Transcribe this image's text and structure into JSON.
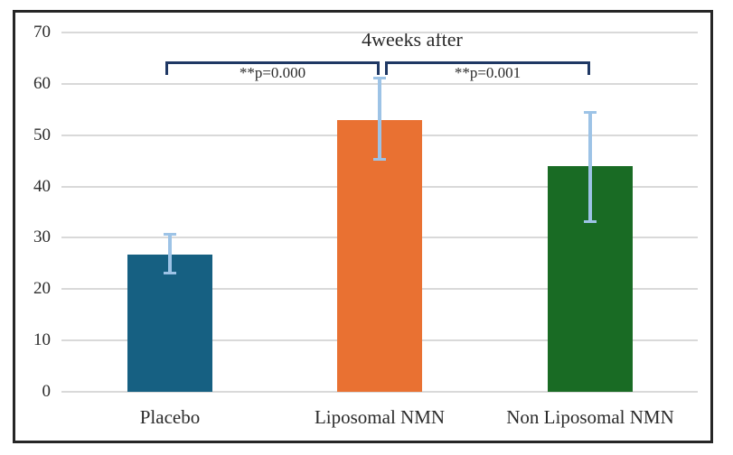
{
  "figure": {
    "kind": "static-bar-chart-figure"
  },
  "chart_data": {
    "type": "bar",
    "title": "4weeks after",
    "xlabel": "",
    "ylabel": "",
    "categories": [
      "Placebo",
      "Liposomal NMN",
      "Non Liposomal NMN"
    ],
    "values": [
      26.8,
      53.0,
      43.9
    ],
    "error_low": [
      23.0,
      45.2,
      33.0
    ],
    "error_high": [
      30.8,
      61.2,
      54.5
    ],
    "ylim": [
      0,
      70
    ],
    "yticks": [
      0,
      10,
      20,
      30,
      40,
      50,
      60,
      70
    ],
    "grid": true,
    "legend": false,
    "bar_colors": [
      "#166082",
      "#E97132",
      "#196B24"
    ],
    "error_bar_color": "#9DC3E6",
    "gridline_color": "#D9D9D9",
    "frame_color": "#262626",
    "bracket_color": "#1F3864",
    "text_color": "#2B2B2B",
    "significance": [
      {
        "from": "Placebo",
        "to": "Liposomal NMN",
        "label": "**p=0.000"
      },
      {
        "from": "Liposomal NMN",
        "to": "Non Liposomal NMN",
        "label": "**p=0.001"
      }
    ]
  }
}
